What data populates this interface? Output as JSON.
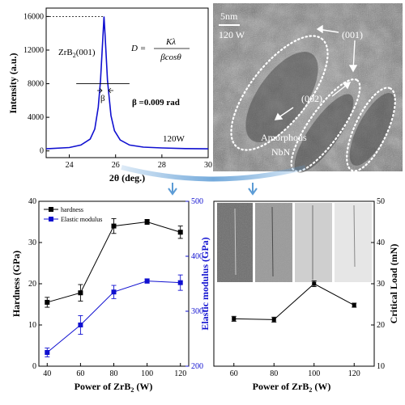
{
  "colors": {
    "hardness": "#000000",
    "elastic": "#1010d0",
    "xrd_line": "#1010d0",
    "arrow": "#5b9bd5",
    "tem_bg": "#8f8f8f"
  },
  "chart_data": [
    {
      "type": "line",
      "panel": "xrd",
      "title": "",
      "xlabel": "2θ (deg.)",
      "ylabel": "Intensity (a.u.)",
      "xlim": [
        23,
        30
      ],
      "ylim": [
        -800,
        17000
      ],
      "xticks": [
        24,
        26,
        28,
        30
      ],
      "yticks": [
        0,
        4000,
        8000,
        12000,
        16000
      ],
      "peak": {
        "x": 25.5,
        "y": 16000,
        "fwhm_y": 8000
      },
      "series": [
        {
          "name": "",
          "x": [
            23,
            24,
            24.5,
            24.9,
            25.1,
            25.25,
            25.35,
            25.45,
            25.5,
            25.55,
            25.65,
            25.8,
            25.95,
            26.2,
            26.6,
            27.2,
            28.0,
            29.0,
            30.0
          ],
          "y": [
            250,
            400,
            700,
            1400,
            2600,
            5200,
            8400,
            13500,
            16000,
            13500,
            8400,
            4200,
            2400,
            1300,
            700,
            450,
            350,
            280,
            250
          ]
        }
      ],
      "annotations": {
        "peak_label": "ZrB",
        "peak_label_sub": "2",
        "peak_label_tail": "(001)",
        "beta_symbol": "β",
        "beta_value": "β =0.009 rad",
        "power": "120W"
      }
    },
    {
      "type": "line",
      "panel": "hardness",
      "title": "",
      "xlabel": "Power of ZrB",
      "xlabel_sub": "2",
      "xlabel_tail": " (W)",
      "ylabel": "Hardness (GPa)",
      "ylabel2": "Elastic modulus (GPa)",
      "xlim": [
        35,
        125
      ],
      "ylim": [
        0,
        40
      ],
      "ylim2": [
        200,
        500
      ],
      "xticks": [
        40,
        60,
        80,
        100,
        120
      ],
      "yticks": [
        0,
        10,
        20,
        30,
        40
      ],
      "yticks2": [
        200,
        300,
        400,
        500
      ],
      "legend": "top-left",
      "series": [
        {
          "name": "hardness",
          "axis": "left",
          "x": [
            40,
            60,
            80,
            100,
            120
          ],
          "y": [
            15.5,
            17.8,
            34.0,
            35.0,
            32.5
          ],
          "err": [
            1.2,
            2.0,
            1.8,
            0.6,
            1.5
          ]
        },
        {
          "name": "Elastic modulus",
          "axis": "right",
          "x": [
            40,
            60,
            80,
            100,
            120
          ],
          "y": [
            225,
            275,
            335,
            355,
            352
          ],
          "err": [
            8,
            17,
            12,
            4,
            14
          ]
        }
      ]
    },
    {
      "type": "line",
      "panel": "critical-load",
      "title": "",
      "xlabel": "Power of ZrB",
      "xlabel_sub": "2",
      "xlabel_tail": " (W)",
      "ylabel": "Critical Load (mN)",
      "xlim": [
        50,
        130
      ],
      "ylim": [
        10,
        50
      ],
      "xticks": [
        60,
        80,
        100,
        120
      ],
      "yticks": [
        10,
        20,
        30,
        40,
        50
      ],
      "series": [
        {
          "name": "",
          "x": [
            60,
            80,
            100,
            120
          ],
          "y": [
            21.5,
            21.3,
            30.0,
            24.8
          ],
          "err": [
            0.6,
            0.6,
            0.7,
            0.5
          ]
        }
      ]
    }
  ],
  "tem": {
    "scale": "5nm",
    "power": "120 W",
    "label_001": "(001)",
    "label_002": "(002)",
    "amorphous_line1": "Amorphous",
    "amorphous_line2": "NbN"
  },
  "xrd_equation": {
    "lhs": "D =",
    "numerator": "Kλ",
    "denominator": "βcosθ"
  }
}
